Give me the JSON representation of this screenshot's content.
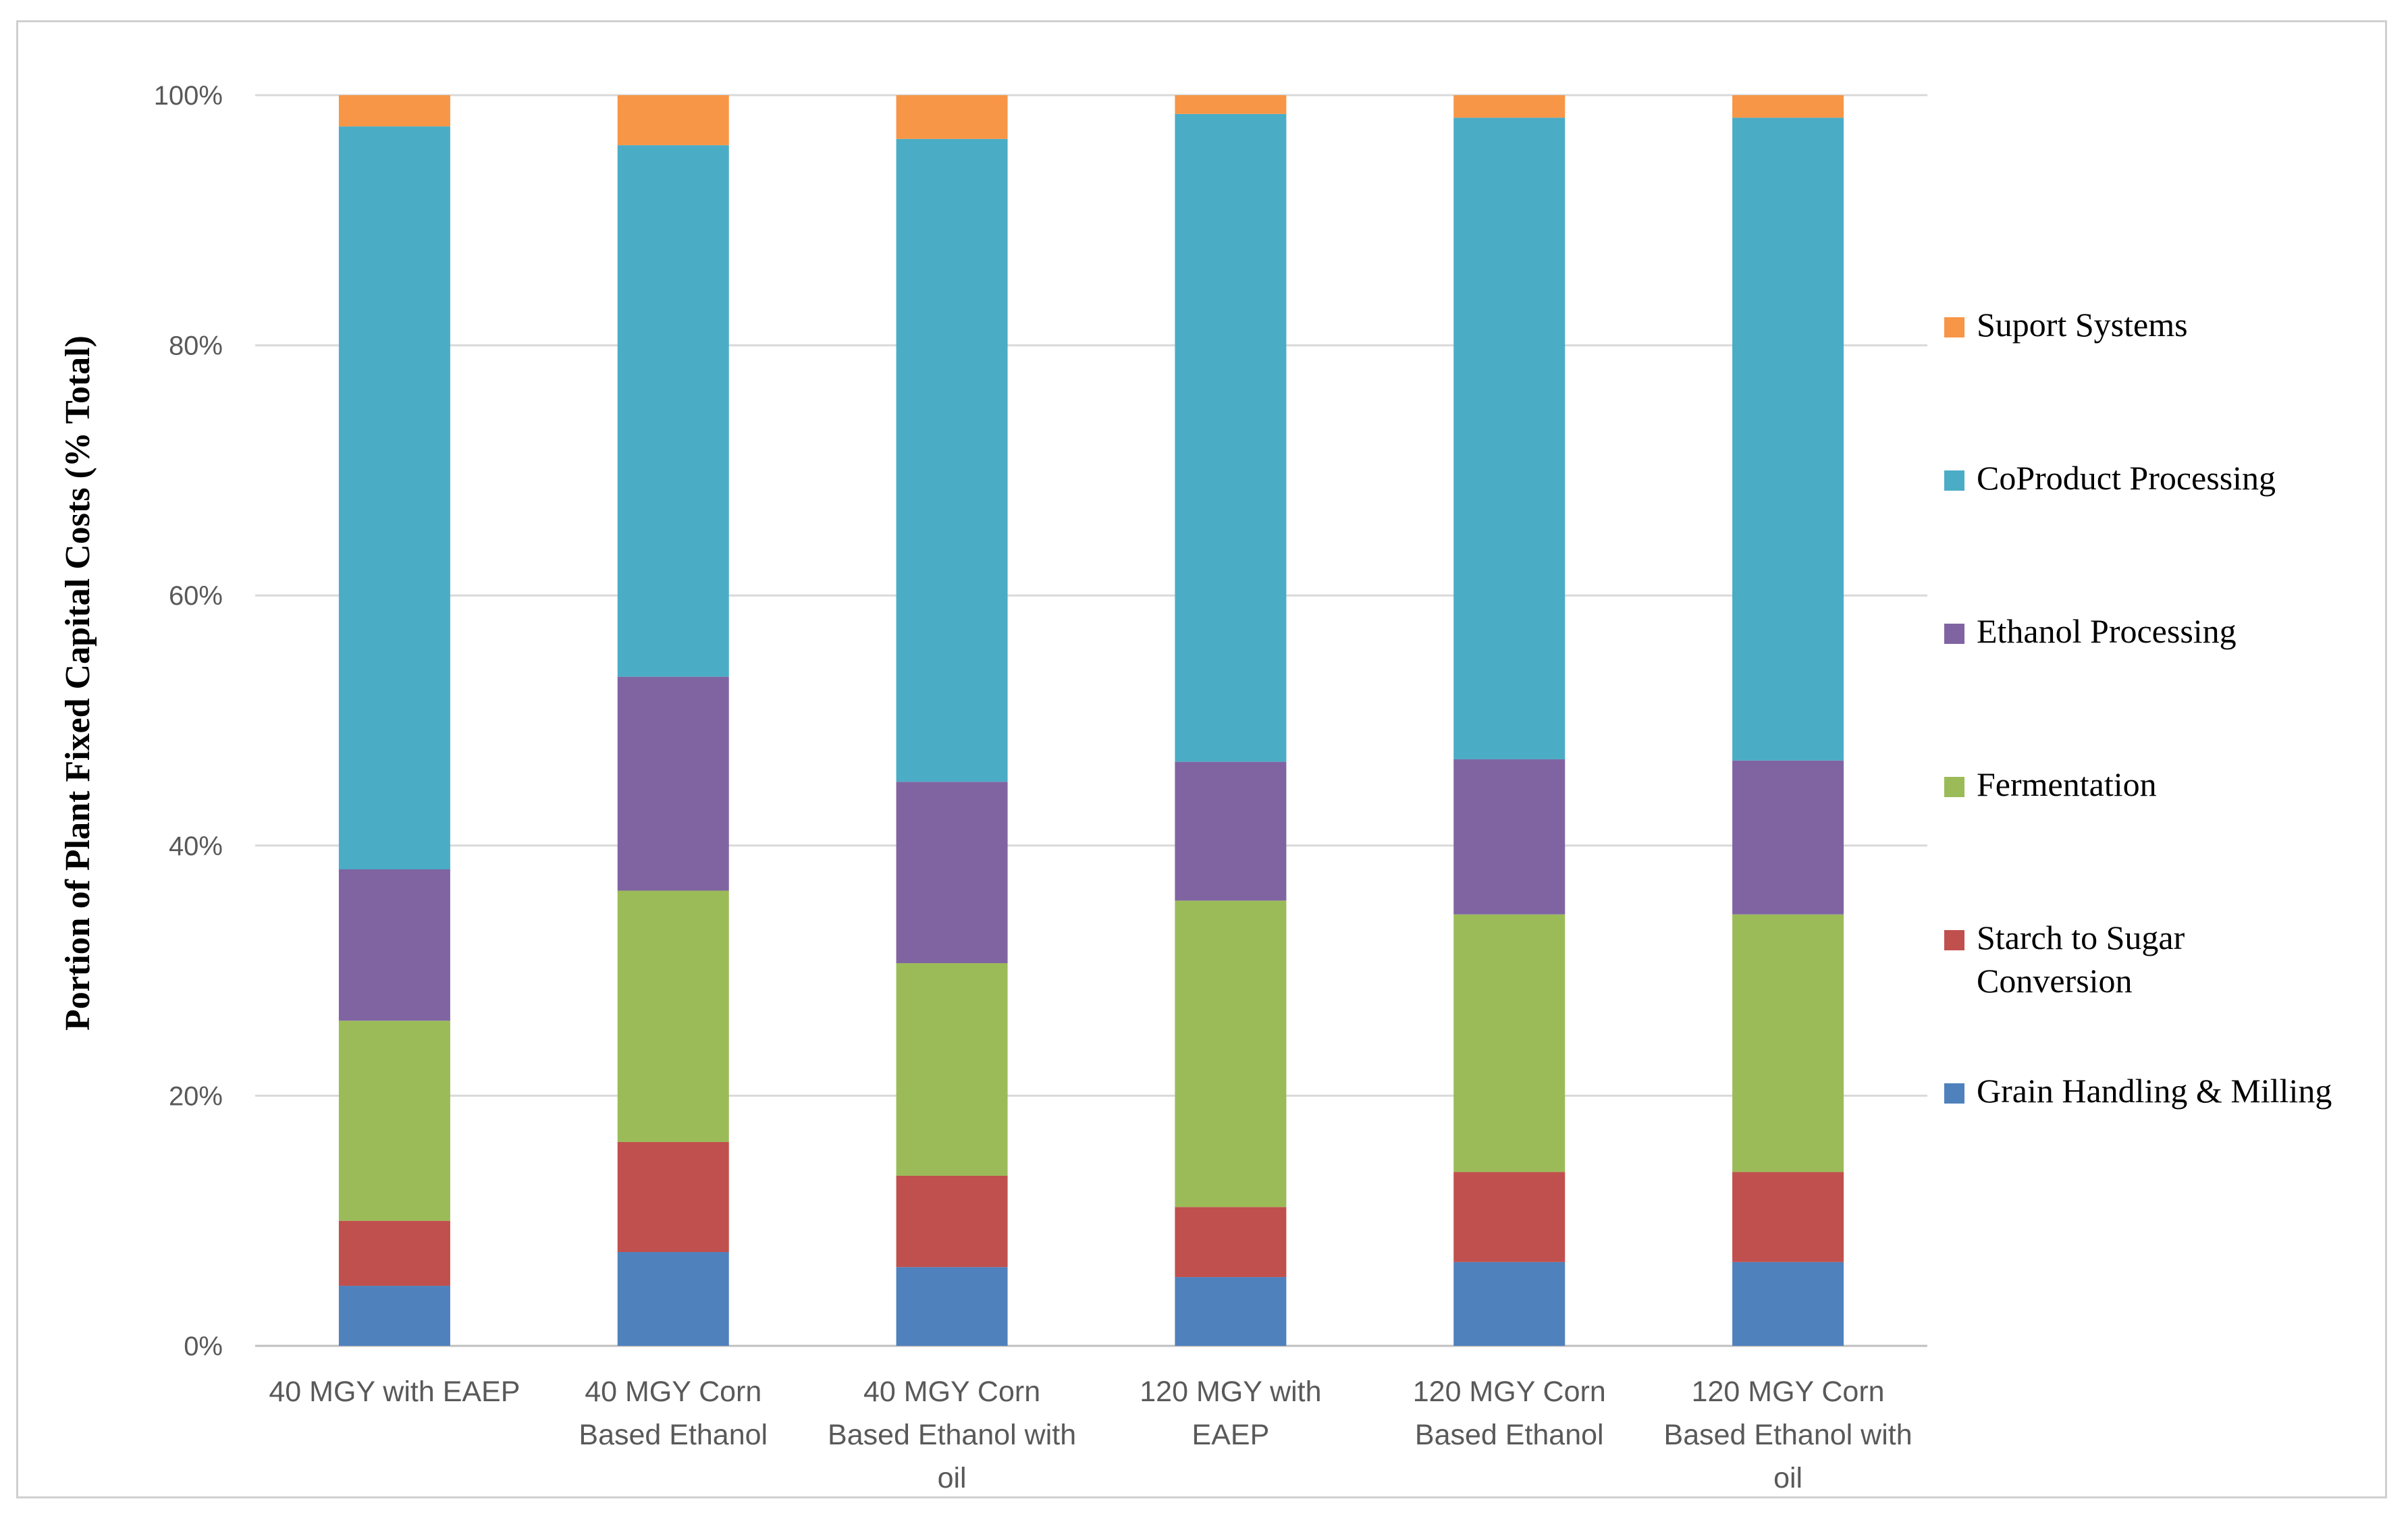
{
  "chart_data": {
    "type": "bar",
    "stacked": true,
    "percent": true,
    "ylabel": "Portion of Plant Fixed Capital Costs (% Total)",
    "xlabel": "",
    "ylim": [
      0,
      100
    ],
    "yticks": [
      "0%",
      "20%",
      "40%",
      "60%",
      "80%",
      "100%"
    ],
    "grid": true,
    "legend_position": "right",
    "categories": [
      [
        "40 MGY with EAEP"
      ],
      [
        "40 MGY Corn",
        "Based Ethanol"
      ],
      [
        "40 MGY Corn",
        "Based Ethanol with",
        "oil"
      ],
      [
        "120 MGY with",
        "EAEP"
      ],
      [
        "120 MGY Corn",
        "Based Ethanol"
      ],
      [
        "120 MGY Corn",
        "Based Ethanol with",
        "oil"
      ]
    ],
    "series": [
      {
        "name": "Grain Handling & Milling",
        "color": "#4f81bd",
        "values": [
          4.8,
          7.5,
          6.3,
          5.5,
          6.7,
          6.7
        ]
      },
      {
        "name": "Starch to Sugar Conversion",
        "color": "#c0504d",
        "values": [
          5.2,
          8.8,
          7.3,
          5.6,
          7.2,
          7.2
        ]
      },
      {
        "name": "Fermentation",
        "color": "#9bbb59",
        "values": [
          16.0,
          20.1,
          17.0,
          24.5,
          20.6,
          20.6
        ]
      },
      {
        "name": "Ethanol Processing",
        "color": "#8064a2",
        "values": [
          12.1,
          17.1,
          14.5,
          11.1,
          12.4,
          12.3
        ]
      },
      {
        "name": "CoProduct Processing",
        "color": "#4bacc6",
        "values": [
          59.4,
          42.5,
          51.4,
          51.8,
          51.3,
          51.4
        ]
      },
      {
        "name": "Suport Systems",
        "color": "#f79646",
        "values": [
          2.5,
          4.0,
          3.5,
          1.5,
          1.8,
          1.8
        ]
      }
    ],
    "legend": [
      {
        "lines": [
          "Suport Systems"
        ],
        "color": "#f79646"
      },
      {
        "lines": [
          "CoProduct Processing"
        ],
        "color": "#4bacc6"
      },
      {
        "lines": [
          "Ethanol Processing"
        ],
        "color": "#8064a2"
      },
      {
        "lines": [
          "Fermentation"
        ],
        "color": "#9bbb59"
      },
      {
        "lines": [
          "Starch to Sugar",
          "Conversion"
        ],
        "color": "#c0504d"
      },
      {
        "lines": [
          "Grain Handling & Milling"
        ],
        "color": "#4f81bd"
      }
    ]
  }
}
